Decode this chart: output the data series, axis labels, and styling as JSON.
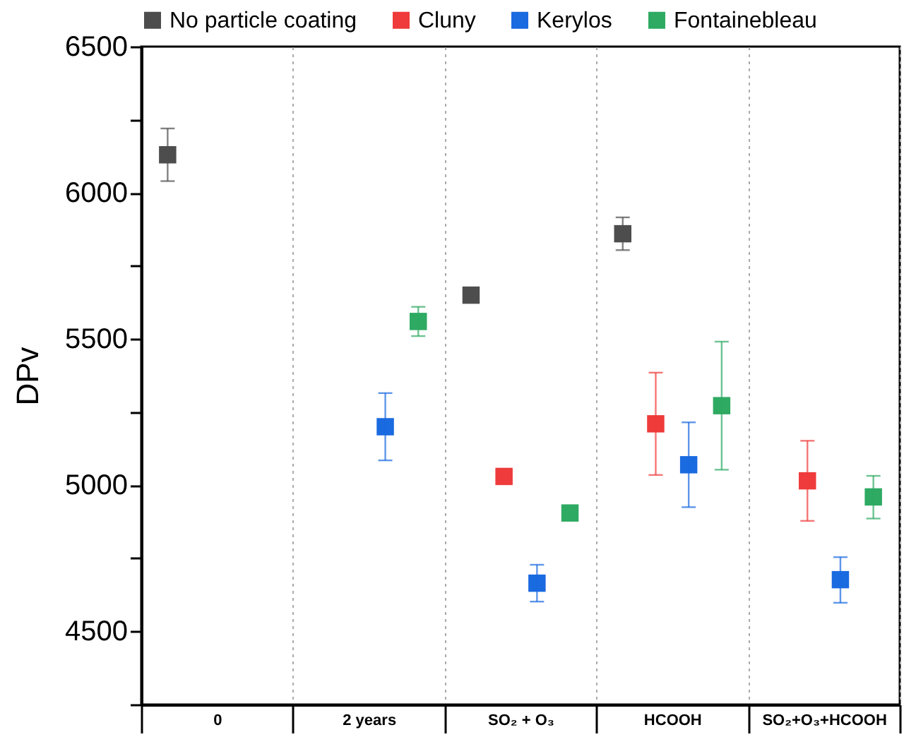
{
  "chart_data": {
    "type": "scatter",
    "ylabel": "DPv",
    "categories": [
      "0",
      "2 years",
      "SO₂ + O₃",
      "HCOOH",
      "SO₂+O₃+HCOOH"
    ],
    "series": [
      {
        "name": "No particle coating",
        "color": "#4d4d4d",
        "values": [
          6130,
          null,
          5650,
          5860,
          null
        ],
        "errors": [
          90,
          null,
          null,
          56,
          null
        ]
      },
      {
        "name": "Cluny",
        "color": "#ef3b3b",
        "values": [
          null,
          null,
          5030,
          5210,
          5015
        ],
        "errors": [
          null,
          null,
          null,
          175,
          137
        ]
      },
      {
        "name": "Kerylos",
        "color": "#1a6ae0",
        "values": [
          null,
          5200,
          4665,
          5070,
          4677
        ],
        "errors": [
          null,
          115,
          63,
          145,
          [
            4598,
            4754
          ]
        ]
      },
      {
        "name": "Fontainebleau",
        "color": "#2eaa62",
        "values": [
          null,
          5560,
          4905,
          5272,
          4960
        ],
        "errors": [
          null,
          50,
          null,
          [
            5053,
            5491
          ],
          [
            4886,
            5032
          ]
        ]
      }
    ],
    "ylim": [
      4250,
      6500
    ],
    "yticks": [
      {
        "value": 4250,
        "label": null
      },
      4500,
      {
        "value": 4750,
        "label": null
      },
      5000,
      {
        "value": 5250,
        "label": null
      },
      5500,
      {
        "value": 5750,
        "label": null
      },
      6000,
      {
        "value": 6250,
        "label": null
      },
      6500
    ],
    "grid": "x",
    "legend": "top",
    "marker": "square"
  }
}
